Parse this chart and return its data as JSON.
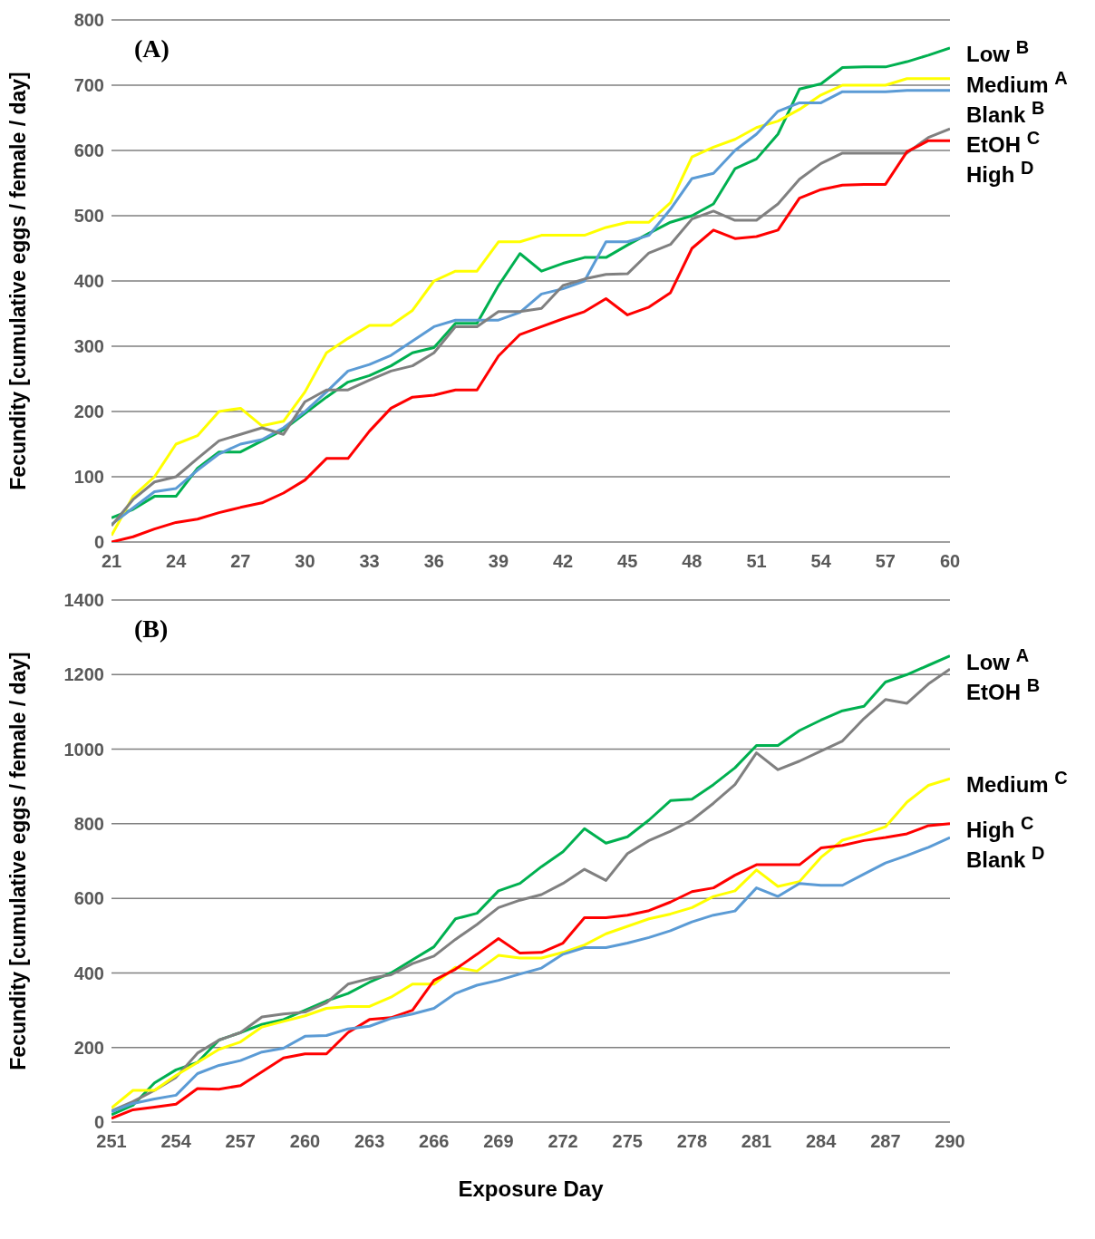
{
  "chart_data": [
    {
      "type": "line",
      "title": "(A)",
      "ylabel": "Fecundity [cumulative eggs / female / day]",
      "x": [
        21,
        22,
        23,
        24,
        25,
        26,
        27,
        28,
        29,
        30,
        31,
        32,
        33,
        34,
        35,
        36,
        37,
        38,
        39,
        40,
        41,
        42,
        43,
        44,
        45,
        46,
        47,
        48,
        49,
        50,
        51,
        52,
        53,
        54,
        55,
        56,
        57,
        58,
        59,
        60
      ],
      "xlim": [
        21,
        60
      ],
      "xticks": [
        21,
        24,
        27,
        30,
        33,
        36,
        39,
        42,
        45,
        48,
        51,
        54,
        57,
        60
      ],
      "ylim": [
        0,
        800
      ],
      "yticks": [
        0,
        100,
        200,
        300,
        400,
        500,
        600,
        700,
        800
      ],
      "grid": "y",
      "legend": "right",
      "marker": "none",
      "line_style": "solid",
      "series": [
        {
          "name": "Low $^{B}$",
          "color": "#00b050",
          "values": [
            37,
            50,
            70,
            70,
            113,
            138,
            138,
            155,
            172,
            197,
            222,
            245,
            255,
            270,
            290,
            298,
            335,
            335,
            393,
            442,
            415,
            427,
            436,
            436,
            455,
            473,
            490,
            500,
            518,
            572,
            587,
            625,
            694,
            702,
            727,
            728,
            728,
            736,
            746,
            757
          ]
        },
        {
          "name": "Medium $^{A}$",
          "color": "#ffff00",
          "values": [
            10,
            70,
            100,
            150,
            163,
            200,
            205,
            178,
            185,
            230,
            290,
            312,
            332,
            332,
            355,
            400,
            415,
            415,
            460,
            460,
            470,
            470,
            470,
            482,
            490,
            490,
            520,
            590,
            605,
            617,
            635,
            645,
            663,
            685,
            700,
            700,
            700,
            710,
            710,
            710
          ]
        },
        {
          "name": "Blank $^{B}$",
          "color": "#5b9bd5",
          "values": [
            27,
            52,
            77,
            82,
            110,
            135,
            150,
            157,
            175,
            200,
            230,
            262,
            272,
            286,
            308,
            330,
            340,
            340,
            340,
            352,
            380,
            388,
            400,
            460,
            460,
            470,
            510,
            557,
            565,
            600,
            625,
            660,
            673,
            673,
            690,
            690,
            690,
            692,
            692,
            692
          ]
        },
        {
          "name": "EtOH $^{C}$",
          "color": "#808080",
          "values": [
            25,
            65,
            92,
            100,
            128,
            155,
            165,
            175,
            165,
            215,
            233,
            233,
            248,
            262,
            270,
            290,
            330,
            330,
            353,
            353,
            358,
            393,
            403,
            410,
            411,
            443,
            456,
            495,
            507,
            493,
            493,
            518,
            556,
            580,
            596,
            596,
            596,
            596,
            620,
            633
          ]
        },
        {
          "name": "High $^{D}$",
          "color": "#ff0000",
          "values": [
            0,
            8,
            20,
            30,
            35,
            45,
            53,
            60,
            75,
            95,
            128,
            128,
            170,
            205,
            222,
            225,
            233,
            233,
            285,
            318,
            330,
            342,
            353,
            373,
            348,
            360,
            382,
            450,
            478,
            465,
            468,
            478,
            527,
            540,
            547,
            548,
            548,
            598,
            615,
            615
          ]
        }
      ]
    },
    {
      "type": "line",
      "title": "(B)",
      "xlabel": "Exposure Day",
      "ylabel": "Fecundity [cumulative eggs / female / day]",
      "x": [
        251,
        252,
        253,
        254,
        255,
        256,
        257,
        258,
        259,
        260,
        261,
        262,
        263,
        264,
        265,
        266,
        267,
        268,
        269,
        270,
        271,
        272,
        273,
        274,
        275,
        276,
        277,
        278,
        279,
        280,
        281,
        282,
        283,
        284,
        285,
        286,
        287,
        288,
        289,
        290
      ],
      "xlim": [
        251,
        290
      ],
      "xticks": [
        251,
        254,
        257,
        260,
        263,
        266,
        269,
        272,
        275,
        278,
        281,
        284,
        287,
        290
      ],
      "ylim": [
        0,
        1400
      ],
      "yticks": [
        0,
        200,
        400,
        600,
        800,
        1000,
        1200,
        1400
      ],
      "grid": "y",
      "legend": "right",
      "marker": "none",
      "line_style": "solid",
      "series": [
        {
          "name": "Low $^{A}$",
          "color": "#00b050",
          "values": [
            20,
            45,
            105,
            140,
            160,
            220,
            240,
            262,
            275,
            300,
            325,
            345,
            375,
            400,
            435,
            470,
            545,
            560,
            620,
            640,
            685,
            725,
            787,
            748,
            765,
            810,
            862,
            866,
            905,
            950,
            1010,
            1010,
            1050,
            1078,
            1103,
            1115,
            1180,
            1200,
            1225,
            1250
          ]
        },
        {
          "name": "EtOH $^{B}$",
          "color": "#808080",
          "values": [
            30,
            55,
            85,
            120,
            185,
            220,
            240,
            282,
            290,
            295,
            320,
            370,
            385,
            395,
            425,
            445,
            490,
            530,
            575,
            595,
            610,
            640,
            678,
            648,
            720,
            755,
            780,
            810,
            855,
            905,
            990,
            945,
            968,
            995,
            1022,
            1082,
            1133,
            1123,
            1175,
            1215
          ]
        },
        {
          "name": "Medium $^{C}$",
          "color": "#ffff00",
          "values": [
            38,
            85,
            85,
            125,
            160,
            195,
            215,
            255,
            270,
            285,
            305,
            310,
            310,
            335,
            370,
            370,
            415,
            405,
            447,
            440,
            440,
            455,
            475,
            505,
            525,
            545,
            558,
            575,
            605,
            620,
            676,
            632,
            645,
            710,
            756,
            772,
            792,
            858,
            903,
            921
          ]
        },
        {
          "name": "High $^{C}$",
          "color": "#ff0000",
          "values": [
            10,
            33,
            40,
            48,
            90,
            88,
            98,
            135,
            172,
            183,
            183,
            240,
            275,
            280,
            300,
            380,
            410,
            450,
            492,
            453,
            455,
            480,
            548,
            548,
            555,
            567,
            590,
            618,
            628,
            662,
            690,
            690,
            690,
            735,
            742,
            755,
            763,
            773,
            795,
            800
          ]
        },
        {
          "name": "Blank $^{D}$",
          "color": "#5b9bd5",
          "values": [
            28,
            50,
            62,
            72,
            130,
            152,
            165,
            188,
            198,
            230,
            232,
            250,
            257,
            278,
            290,
            305,
            345,
            367,
            380,
            397,
            413,
            450,
            468,
            468,
            480,
            495,
            513,
            537,
            555,
            566,
            628,
            605,
            640,
            635,
            635,
            665,
            695,
            715,
            737,
            763
          ]
        }
      ]
    }
  ]
}
